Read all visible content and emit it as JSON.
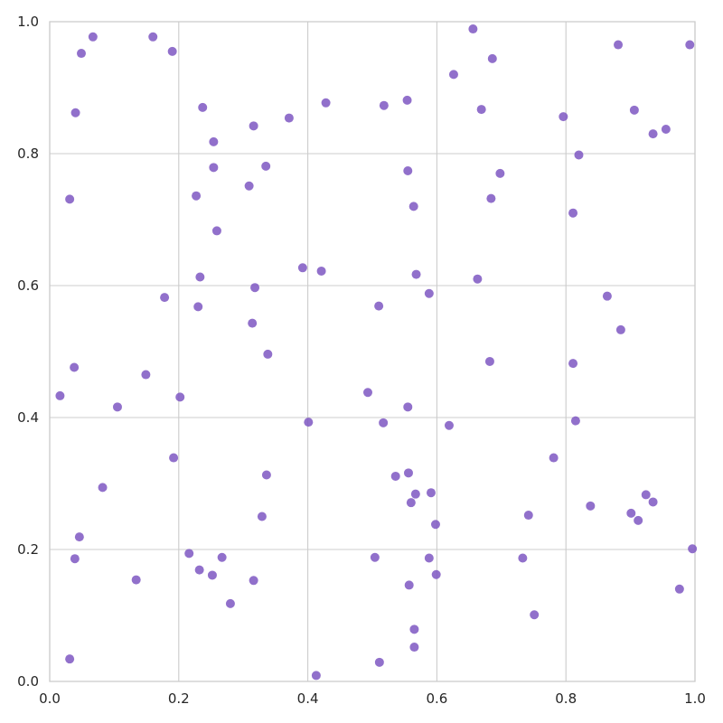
{
  "chart_data": {
    "type": "scatter",
    "title": "",
    "xlabel": "",
    "ylabel": "",
    "xlim": [
      0.0,
      1.0
    ],
    "ylim": [
      0.0,
      1.0
    ],
    "grid": true,
    "legend": null,
    "marker_color": "#7e57c2",
    "gridline_color": "#cccccc",
    "spine_color": "#cccccc",
    "text_color": "#262626",
    "x_ticks": [
      0.0,
      0.2,
      0.4,
      0.6,
      0.8,
      1.0
    ],
    "x_tick_labels": [
      "0.0",
      "0.2",
      "0.4",
      "0.6",
      "0.8",
      "1.0"
    ],
    "y_ticks": [
      0.0,
      0.2,
      0.4,
      0.6,
      0.8,
      1.0
    ],
    "y_tick_labels": [
      "0.0",
      "0.2",
      "0.4",
      "0.6",
      "0.8",
      "1.0"
    ],
    "series": [
      {
        "points": [
          [
            0.067,
            0.977
          ],
          [
            0.16,
            0.977
          ],
          [
            0.19,
            0.955
          ],
          [
            0.049,
            0.952
          ],
          [
            0.04,
            0.862
          ],
          [
            0.237,
            0.87
          ],
          [
            0.316,
            0.842
          ],
          [
            0.371,
            0.854
          ],
          [
            0.428,
            0.877
          ],
          [
            0.518,
            0.873
          ],
          [
            0.554,
            0.881
          ],
          [
            0.626,
            0.92
          ],
          [
            0.656,
            0.989
          ],
          [
            0.686,
            0.944
          ],
          [
            0.669,
            0.867
          ],
          [
            0.796,
            0.856
          ],
          [
            0.881,
            0.965
          ],
          [
            0.906,
            0.866
          ],
          [
            0.935,
            0.83
          ],
          [
            0.955,
            0.837
          ],
          [
            0.992,
            0.965
          ],
          [
            0.254,
            0.818
          ],
          [
            0.82,
            0.798
          ],
          [
            0.335,
            0.781
          ],
          [
            0.254,
            0.779
          ],
          [
            0.555,
            0.774
          ],
          [
            0.698,
            0.77
          ],
          [
            0.309,
            0.751
          ],
          [
            0.227,
            0.736
          ],
          [
            0.031,
            0.731
          ],
          [
            0.684,
            0.732
          ],
          [
            0.564,
            0.72
          ],
          [
            0.811,
            0.71
          ],
          [
            0.259,
            0.683
          ],
          [
            0.392,
            0.627
          ],
          [
            0.421,
            0.622
          ],
          [
            0.568,
            0.617
          ],
          [
            0.233,
            0.613
          ],
          [
            0.663,
            0.61
          ],
          [
            0.318,
            0.597
          ],
          [
            0.588,
            0.588
          ],
          [
            0.864,
            0.584
          ],
          [
            0.178,
            0.582
          ],
          [
            0.23,
            0.568
          ],
          [
            0.51,
            0.569
          ],
          [
            0.314,
            0.543
          ],
          [
            0.885,
            0.533
          ],
          [
            0.338,
            0.496
          ],
          [
            0.682,
            0.485
          ],
          [
            0.811,
            0.482
          ],
          [
            0.038,
            0.476
          ],
          [
            0.149,
            0.465
          ],
          [
            0.493,
            0.438
          ],
          [
            0.016,
            0.433
          ],
          [
            0.202,
            0.431
          ],
          [
            0.105,
            0.416
          ],
          [
            0.555,
            0.416
          ],
          [
            0.401,
            0.393
          ],
          [
            0.517,
            0.392
          ],
          [
            0.815,
            0.395
          ],
          [
            0.619,
            0.388
          ],
          [
            0.192,
            0.339
          ],
          [
            0.781,
            0.339
          ],
          [
            0.336,
            0.313
          ],
          [
            0.536,
            0.311
          ],
          [
            0.556,
            0.316
          ],
          [
            0.082,
            0.294
          ],
          [
            0.567,
            0.284
          ],
          [
            0.591,
            0.286
          ],
          [
            0.56,
            0.271
          ],
          [
            0.924,
            0.283
          ],
          [
            0.935,
            0.272
          ],
          [
            0.838,
            0.266
          ],
          [
            0.901,
            0.255
          ],
          [
            0.329,
            0.25
          ],
          [
            0.742,
            0.252
          ],
          [
            0.912,
            0.244
          ],
          [
            0.598,
            0.238
          ],
          [
            0.046,
            0.219
          ],
          [
            0.996,
            0.201
          ],
          [
            0.216,
            0.194
          ],
          [
            0.039,
            0.186
          ],
          [
            0.267,
            0.188
          ],
          [
            0.504,
            0.188
          ],
          [
            0.588,
            0.187
          ],
          [
            0.733,
            0.187
          ],
          [
            0.232,
            0.169
          ],
          [
            0.252,
            0.161
          ],
          [
            0.599,
            0.162
          ],
          [
            0.134,
            0.154
          ],
          [
            0.316,
            0.153
          ],
          [
            0.557,
            0.146
          ],
          [
            0.976,
            0.14
          ],
          [
            0.28,
            0.118
          ],
          [
            0.751,
            0.101
          ],
          [
            0.565,
            0.079
          ],
          [
            0.031,
            0.034
          ],
          [
            0.565,
            0.052
          ],
          [
            0.511,
            0.029
          ],
          [
            0.413,
            0.009
          ]
        ]
      }
    ]
  }
}
